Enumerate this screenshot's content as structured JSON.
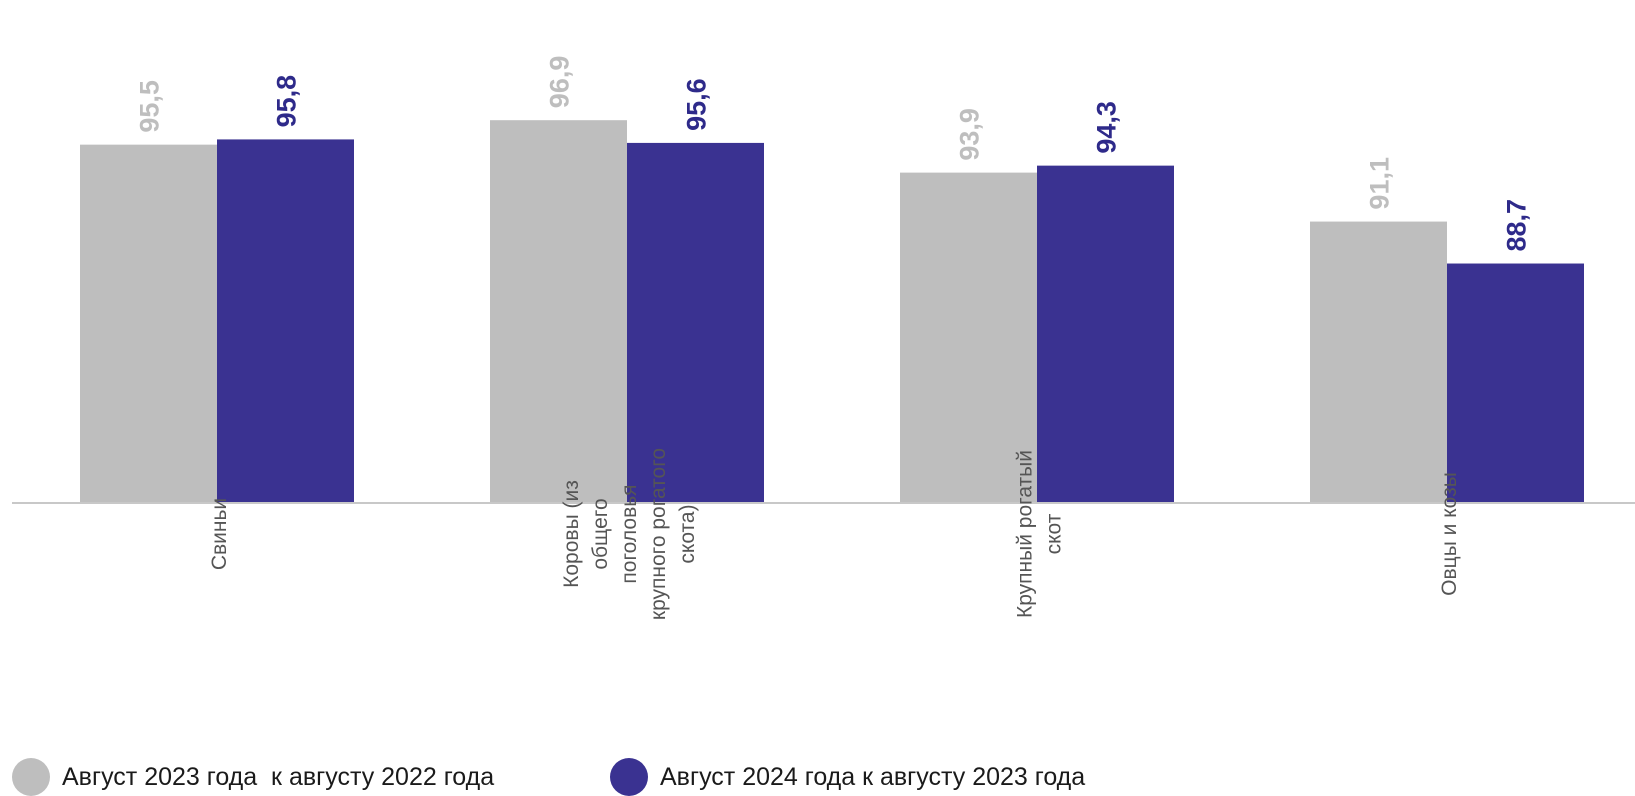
{
  "chart_data": {
    "type": "bar",
    "categories": [
      [
        "Свиньи"
      ],
      [
        "Коровы (из",
        "общего",
        "поголовья",
        "крупного рогатого",
        "скота)"
      ],
      [
        "Крупный рогатый",
        "скот"
      ],
      [
        "Овцы и козы"
      ]
    ],
    "series": [
      {
        "name": "Август 2023 года  к августу 2022 года",
        "values": [
          95.5,
          96.9,
          93.9,
          91.1
        ],
        "labels": [
          "95,5",
          "96,9",
          "93,9",
          "91,1"
        ],
        "color": "#bebebe",
        "label_color": "#bebebe"
      },
      {
        "name": "Август 2024 года к августу 2023 года",
        "values": [
          95.8,
          95.6,
          94.3,
          88.7
        ],
        "labels": [
          "95,8",
          "95,6",
          "94,3",
          "88,7"
        ],
        "color": "#3a3291",
        "label_color": "#2e2a8a"
      }
    ],
    "ylim": [
      75,
      100
    ],
    "grid": false,
    "legend": "bottom-left",
    "axis_color": "#c8c8c8"
  }
}
